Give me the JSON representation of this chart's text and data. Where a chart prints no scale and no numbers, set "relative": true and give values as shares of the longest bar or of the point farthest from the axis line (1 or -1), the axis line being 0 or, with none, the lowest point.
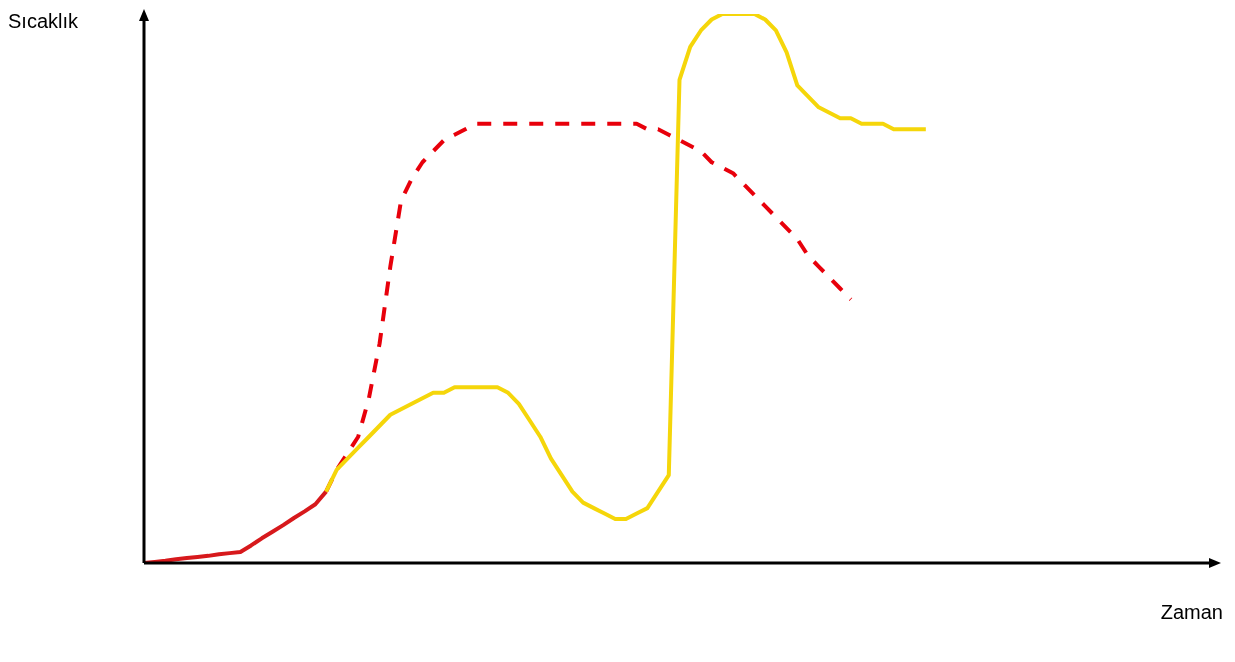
{
  "chart_data": {
    "type": "line",
    "xlabel": "Zaman",
    "ylabel": "Sıcaklık",
    "relative": true,
    "marker": "none",
    "categories": [
      null,
      null,
      null,
      null,
      null,
      null,
      null,
      null,
      null,
      null,
      null,
      null,
      null,
      null,
      null,
      null,
      null,
      null,
      null,
      null,
      null,
      null,
      null,
      null,
      null,
      null,
      null,
      null,
      null,
      null,
      null,
      null,
      null,
      null,
      null,
      null,
      null,
      null,
      null,
      null,
      null,
      null,
      null,
      null,
      null,
      null,
      null,
      null,
      null,
      null,
      null,
      null,
      null,
      null,
      null,
      null,
      null,
      null,
      null,
      null,
      null,
      null,
      null,
      null,
      null,
      null,
      null,
      null,
      null,
      null,
      null,
      null,
      null,
      null,
      null,
      null,
      null,
      null,
      null,
      null,
      null,
      null,
      null,
      null,
      null,
      null,
      null,
      null,
      null,
      null,
      null,
      null,
      null,
      null,
      null,
      null,
      null,
      null,
      null,
      null,
      null
    ],
    "series": [
      {
        "color": "#d7191c",
        "line_style": "solid",
        "values": [
          0,
          0.002,
          0.004,
          0.007,
          0.009,
          0.011,
          0.013,
          0.016,
          0.018,
          0.02,
          0.032,
          0.045,
          0.057,
          0.069,
          0.082,
          0.094,
          0.107,
          0.13,
          null,
          null,
          null,
          null,
          null,
          null,
          null,
          null,
          null,
          null,
          null,
          null,
          null,
          null,
          null,
          null,
          null,
          null,
          null,
          null,
          null,
          null,
          null,
          null,
          null,
          null,
          null,
          null,
          null,
          null,
          null,
          null,
          null,
          null,
          null,
          null,
          null,
          null,
          null,
          null,
          null,
          null,
          null,
          null,
          null,
          null,
          null,
          null,
          null,
          null,
          null,
          null,
          null,
          null,
          null,
          null,
          null,
          null,
          null,
          null,
          null,
          null,
          null,
          null,
          null,
          null,
          null,
          null,
          null,
          null,
          null,
          null,
          null,
          null,
          null,
          null,
          null,
          null,
          null,
          null,
          null,
          null,
          null
        ]
      },
      {
        "color": "#e8000b",
        "line_style": "dashed",
        "values": [
          null,
          null,
          null,
          null,
          null,
          null,
          null,
          null,
          null,
          null,
          null,
          null,
          null,
          null,
          null,
          null,
          null,
          0.13,
          0.17,
          0.2,
          0.23,
          0.3,
          0.4,
          0.54,
          0.66,
          0.7,
          0.73,
          0.75,
          0.77,
          0.78,
          0.79,
          0.8,
          0.8,
          0.8,
          0.8,
          0.8,
          0.8,
          0.8,
          0.8,
          0.8,
          0.8,
          0.8,
          0.8,
          0.8,
          0.8,
          0.8,
          0.8,
          0.79,
          0.79,
          0.78,
          0.77,
          0.76,
          0.75,
          0.73,
          0.72,
          0.71,
          0.69,
          0.67,
          0.65,
          0.63,
          0.61,
          0.59,
          0.56,
          0.54,
          0.52,
          0.5,
          0.48,
          null,
          null,
          null,
          null,
          null,
          null,
          null,
          null,
          null,
          null,
          null,
          null,
          null,
          null,
          null,
          null,
          null,
          null,
          null,
          null,
          null,
          null,
          null,
          null,
          null,
          null,
          null,
          null,
          null,
          null,
          null,
          null,
          null,
          null
        ]
      },
      {
        "color": "#f5d60a",
        "line_style": "solid",
        "values": [
          null,
          null,
          null,
          null,
          null,
          null,
          null,
          null,
          null,
          null,
          null,
          null,
          null,
          null,
          null,
          null,
          null,
          0.13,
          0.17,
          0.19,
          0.21,
          0.23,
          0.25,
          0.27,
          0.28,
          0.29,
          0.3,
          0.31,
          0.31,
          0.32,
          0.32,
          0.32,
          0.32,
          0.32,
          0.31,
          0.29,
          0.26,
          0.23,
          0.19,
          0.16,
          0.13,
          0.11,
          0.1,
          0.09,
          0.08,
          0.08,
          0.09,
          0.1,
          0.13,
          0.16,
          0.88,
          0.94,
          0.97,
          0.99,
          1,
          1,
          1,
          1,
          0.99,
          0.97,
          0.93,
          0.87,
          0.85,
          0.83,
          0.82,
          0.81,
          0.81,
          0.8,
          0.8,
          0.8,
          0.79,
          0.79,
          0.79,
          0.79,
          null,
          null,
          null,
          null,
          null,
          null,
          null,
          null,
          null,
          null,
          null,
          null,
          null,
          null,
          null,
          null,
          null,
          null,
          null,
          null,
          null,
          null,
          null,
          null,
          null,
          null,
          null
        ]
      }
    ]
  }
}
